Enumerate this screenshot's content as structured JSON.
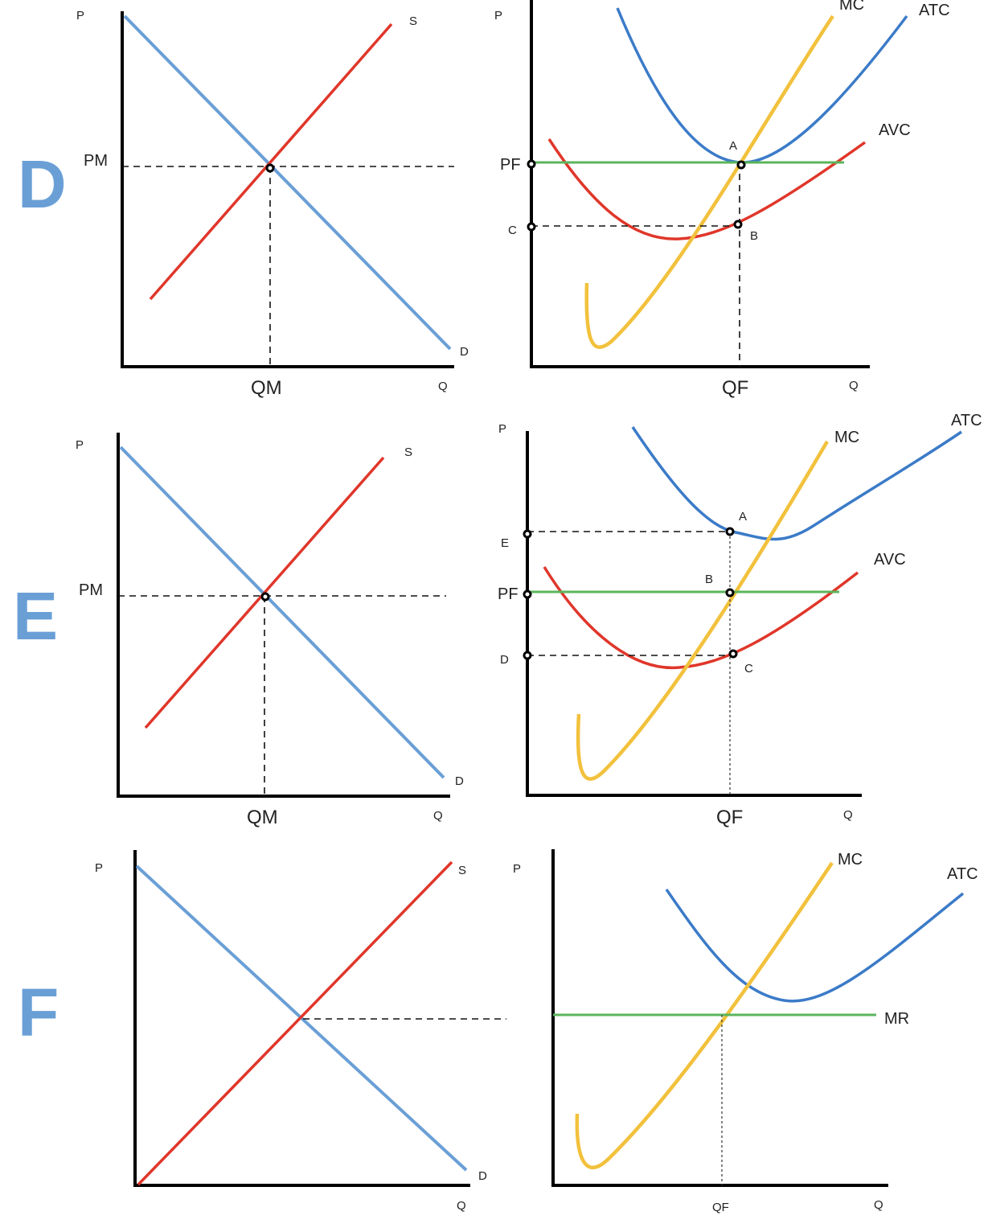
{
  "rows": {
    "d": {
      "letter": "D",
      "market": {
        "p_axis": "P",
        "q_axis": "Q",
        "supply": "S",
        "demand": "D",
        "price": "PM",
        "quantity": "QM"
      },
      "firm": {
        "p_axis": "P",
        "q_axis": "Q",
        "mc": "MC",
        "atc": "ATC",
        "avc": "AVC",
        "price": "PF",
        "quantity": "QF",
        "point_a": "A",
        "point_b": "B",
        "price_c": "C"
      }
    },
    "e": {
      "letter": "E",
      "market": {
        "p_axis": "P",
        "q_axis": "Q",
        "supply": "S",
        "demand": "D",
        "price": "PM",
        "quantity": "QM"
      },
      "firm": {
        "p_axis": "P",
        "q_axis": "Q",
        "mc": "MC",
        "atc": "ATC",
        "avc": "AVC",
        "price": "PF",
        "quantity": "QF",
        "point_a": "A",
        "point_b": "B",
        "point_c": "C",
        "price_e": "E",
        "price_d": "D"
      }
    },
    "f": {
      "letter": "F",
      "market": {
        "p_axis": "P",
        "q_axis": "Q",
        "supply": "S",
        "demand": "D"
      },
      "firm": {
        "p_axis": "P",
        "q_axis": "Q",
        "mc": "MC",
        "atc": "ATC",
        "mr": "MR",
        "quantity": "QF"
      }
    }
  },
  "colors": {
    "demand": "#6a9fd6",
    "supply": "#e0362a",
    "atc": "#3b7bc8",
    "avc": "#e0362a",
    "mc": "#f2c13c",
    "price_line": "#5bb55b"
  }
}
